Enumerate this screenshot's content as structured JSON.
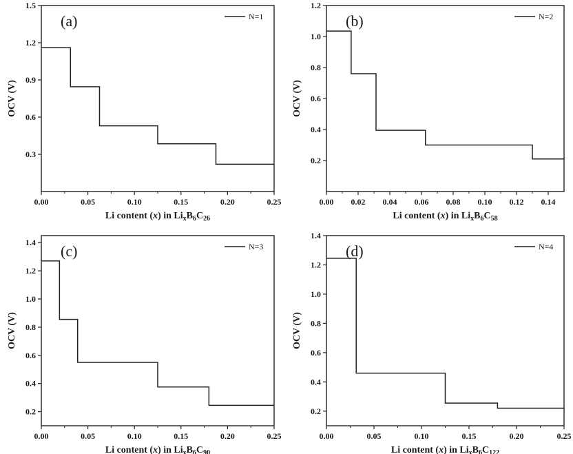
{
  "chart_data": [
    {
      "type": "line",
      "panel_label": "(a)",
      "xlabel": {
        "pre": "Li content (",
        "var": "x",
        "mid": ") in Li",
        "sub1": "x",
        "mid2": "B",
        "sub2": "6",
        "mid3": "C",
        "sub3": "26"
      },
      "ylabel": "OCV (V)",
      "xlim": [
        0,
        0.25
      ],
      "ylim": [
        0,
        1.5
      ],
      "xticks": [
        0.0,
        0.05,
        0.1,
        0.15,
        0.2,
        0.25
      ],
      "xtick_labels": [
        "0.00",
        "0.05",
        "0.10",
        "0.15",
        "0.20",
        "0.25"
      ],
      "yticks": [
        0.3,
        0.6,
        0.9,
        1.2,
        1.5
      ],
      "ytick_labels": [
        "0.3",
        "0.6",
        "0.9",
        "1.2",
        "1.5"
      ],
      "legend_position": "top-right",
      "series": [
        {
          "name": "N=1",
          "color": "#222222",
          "steps": [
            [
              0,
              0.0313,
              1.16
            ],
            [
              0.0313,
              0.0625,
              0.845
            ],
            [
              0.0625,
              0.125,
              0.53
            ],
            [
              0.125,
              0.1875,
              0.385
            ],
            [
              0.1875,
              0.25,
              0.22
            ]
          ]
        }
      ]
    },
    {
      "type": "line",
      "panel_label": "(b)",
      "xlabel": {
        "pre": "Li content (",
        "var": "x",
        "mid": ") in Li",
        "sub1": "x",
        "mid2": "B",
        "sub2": "6",
        "mid3": "C",
        "sub3": "58"
      },
      "ylabel": "OCV (V)",
      "xlim": [
        0,
        0.15
      ],
      "ylim": [
        0,
        1.2
      ],
      "xticks": [
        0.0,
        0.02,
        0.04,
        0.06,
        0.08,
        0.1,
        0.12,
        0.14
      ],
      "xtick_labels": [
        "0.00",
        "0.02",
        "0.04",
        "0.06",
        "0.08",
        "0.10",
        "0.12",
        "0.14"
      ],
      "yticks": [
        0.2,
        0.4,
        0.6,
        0.8,
        1.0,
        1.2
      ],
      "ytick_labels": [
        "0.2",
        "0.4",
        "0.6",
        "0.8",
        "1.0",
        "1.2"
      ],
      "legend_position": "top-right",
      "series": [
        {
          "name": "N=2",
          "color": "#222222",
          "steps": [
            [
              0,
              0.0156,
              1.035
            ],
            [
              0.0156,
              0.0313,
              0.76
            ],
            [
              0.0313,
              0.0625,
              0.395
            ],
            [
              0.0625,
              0.13,
              0.3
            ],
            [
              0.13,
              0.15,
              0.21
            ]
          ]
        }
      ]
    },
    {
      "type": "line",
      "panel_label": "(c)",
      "xlabel": {
        "pre": "Li content (",
        "var": "x",
        "mid": ") in Li",
        "sub1": "x",
        "mid2": "B",
        "sub2": "6",
        "mid3": "C",
        "sub3": "90"
      },
      "ylabel": "OCV (V)",
      "xlim": [
        0,
        0.25
      ],
      "ylim": [
        0.1,
        1.45
      ],
      "xticks": [
        0.0,
        0.05,
        0.1,
        0.15,
        0.2,
        0.25
      ],
      "xtick_labels": [
        "0.00",
        "0.05",
        "0.10",
        "0.15",
        "0.20",
        "0.25"
      ],
      "yticks": [
        0.2,
        0.4,
        0.6,
        0.8,
        1.0,
        1.2,
        1.4
      ],
      "ytick_labels": [
        "0.2",
        "0.4",
        "0.6",
        "0.8",
        "1.0",
        "1.2",
        "1.4"
      ],
      "legend_position": "top-right",
      "series": [
        {
          "name": "N=3",
          "color": "#222222",
          "steps": [
            [
              0,
              0.0195,
              1.27
            ],
            [
              0.0195,
              0.039,
              0.855
            ],
            [
              0.039,
              0.125,
              0.55
            ],
            [
              0.125,
              0.18,
              0.375
            ],
            [
              0.18,
              0.25,
              0.245
            ]
          ]
        }
      ]
    },
    {
      "type": "line",
      "panel_label": "(d)",
      "xlabel": {
        "pre": "Li content (",
        "var": "x",
        "mid": ") in Li",
        "sub1": "x",
        "mid2": "B",
        "sub2": "6",
        "mid3": "C",
        "sub3": "122"
      },
      "ylabel": "OCV (V)",
      "xlim": [
        0,
        0.25
      ],
      "ylim": [
        0.1,
        1.4
      ],
      "xticks": [
        0.0,
        0.05,
        0.1,
        0.15,
        0.2,
        0.25
      ],
      "xtick_labels": [
        "0.00",
        "0.05",
        "0.10",
        "0.15",
        "0.20",
        "0.25"
      ],
      "yticks": [
        0.2,
        0.4,
        0.6,
        0.8,
        1.0,
        1.2,
        1.4
      ],
      "ytick_labels": [
        "0.2",
        "0.4",
        "0.6",
        "0.8",
        "1.0",
        "1.2",
        "1.4"
      ],
      "legend_position": "top-right",
      "series": [
        {
          "name": "N=4",
          "color": "#222222",
          "steps": [
            [
              0,
              0.0313,
              1.245
            ],
            [
              0.0313,
              0.125,
              0.46
            ],
            [
              0.125,
              0.18,
              0.255
            ],
            [
              0.18,
              0.25,
              0.22
            ]
          ]
        }
      ]
    }
  ]
}
